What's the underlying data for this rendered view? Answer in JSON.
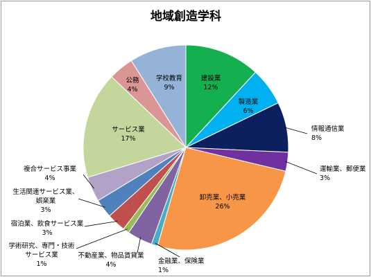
{
  "chart_data": {
    "type": "pie",
    "title": "地域創造学科",
    "slices": [
      {
        "label": [
          "建設業"
        ],
        "pct": "12%",
        "value": 12,
        "color": "#14b050"
      },
      {
        "label": [
          "製造業"
        ],
        "pct": "6%",
        "value": 6,
        "color": "#00b0f0"
      },
      {
        "label": [
          "情報通信業"
        ],
        "pct": "8%",
        "value": 8,
        "color": "#0c1f5e"
      },
      {
        "label": [
          "運輸業、郵便業"
        ],
        "pct": "3%",
        "value": 3,
        "color": "#7030a0"
      },
      {
        "label": [
          "卸売業、小売業"
        ],
        "pct": "26%",
        "value": 26,
        "color": "#f79646"
      },
      {
        "label": [
          "金融業、保険業"
        ],
        "pct": "1%",
        "value": 1,
        "color": "#4bacc6"
      },
      {
        "label": [
          "不動産業、物品賃貸業"
        ],
        "pct": "4%",
        "value": 4,
        "color": "#8064a2"
      },
      {
        "label": [
          "学術研究、専門・技術",
          "サービス業"
        ],
        "pct": "1%",
        "value": 1,
        "color": "#9bbb59"
      },
      {
        "label": [
          "宿泊業、飲食サービス業"
        ],
        "pct": "3%",
        "value": 3,
        "color": "#c0504d"
      },
      {
        "label": [
          "生活関連サービス業、",
          "娯楽業"
        ],
        "pct": "3%",
        "value": 3,
        "color": "#4f81bd"
      },
      {
        "label": [
          "複合サービス事業"
        ],
        "pct": "4%",
        "value": 4,
        "color": "#b3a2c7"
      },
      {
        "label": [
          "サービス業"
        ],
        "pct": "17%",
        "value": 17,
        "color": "#c3d69b"
      },
      {
        "label": [
          "公務"
        ],
        "pct": "4%",
        "value": 4,
        "color": "#d99694"
      },
      {
        "label": [
          "学校教育"
        ],
        "pct": "9%",
        "value": 9,
        "color": "#95b3d7"
      }
    ]
  }
}
